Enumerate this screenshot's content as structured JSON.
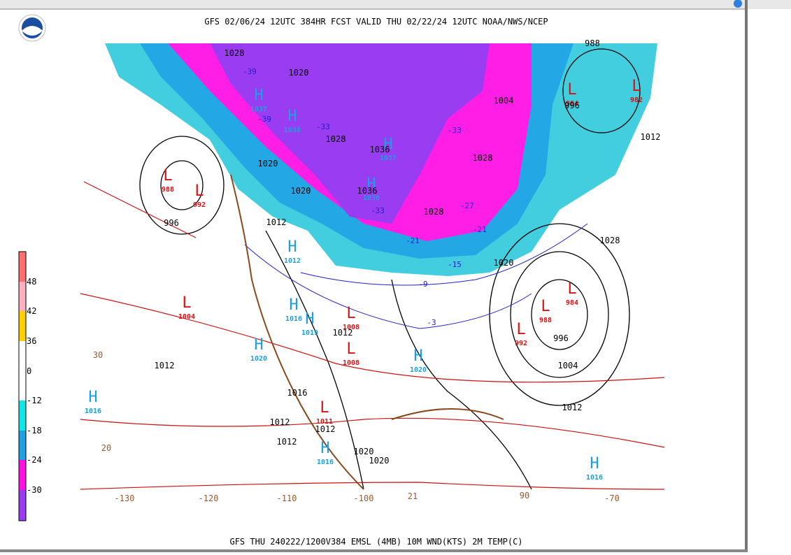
{
  "header": {
    "title": "GFS 02/06/24 12UTC 384HR FCST VALID THU 02/22/24 12UTC NOAA/NWS/NCEP"
  },
  "footer": {
    "text": "GFS THU 240222/1200V384 EMSL (4MB) 10M WND(KTS) 2M TEMP(C)"
  },
  "colorbar": {
    "labels": [
      48,
      42,
      36,
      0,
      -12,
      -18,
      -24,
      -30
    ]
  },
  "map": {
    "centers": [
      {
        "letter": "H",
        "value": "1037"
      },
      {
        "letter": "H",
        "value": "1038"
      },
      {
        "letter": "H",
        "value": "1037"
      },
      {
        "letter": "H",
        "value": "1036"
      },
      {
        "letter": "L",
        "value": "988"
      },
      {
        "letter": "L",
        "value": "992"
      },
      {
        "letter": "L",
        "value": "1004"
      },
      {
        "letter": "H",
        "value": "1012"
      },
      {
        "letter": "H",
        "value": "1016"
      },
      {
        "letter": "H",
        "value": "1019"
      },
      {
        "letter": "H",
        "value": "1020"
      },
      {
        "letter": "L",
        "value": "1008"
      },
      {
        "letter": "L",
        "value": "1008"
      },
      {
        "letter": "H",
        "value": "1020"
      },
      {
        "letter": "L",
        "value": "984"
      },
      {
        "letter": "L",
        "value": "988"
      },
      {
        "letter": "L",
        "value": "992"
      },
      {
        "letter": "H",
        "value": "1016"
      },
      {
        "letter": "L",
        "value": "1011"
      },
      {
        "letter": "H",
        "value": "1016"
      },
      {
        "letter": "H",
        "value": "1016"
      },
      {
        "letter": "L",
        "value": "984"
      },
      {
        "letter": "L",
        "value": "982"
      }
    ],
    "isobar_labels": [
      "1028",
      "1020",
      "1028",
      "1036",
      "1036",
      "1020",
      "1020",
      "1028",
      "1028",
      "1004",
      "996",
      "988",
      "1012",
      "1028",
      "1020",
      "996",
      "1012",
      "996",
      "1004",
      "1012",
      "1012",
      "1012",
      "1012",
      "1020",
      "1020",
      "1016",
      "1012",
      "1012"
    ],
    "temp_labels": [
      "-39",
      "-39",
      "-33",
      "-33",
      "-27",
      "-21",
      "-21",
      "-15",
      "-9",
      "-3",
      "-33"
    ],
    "edge_labels": [
      "30",
      "20",
      "-130",
      "-120",
      "-110",
      "-100",
      "21",
      "90",
      "-70"
    ]
  }
}
